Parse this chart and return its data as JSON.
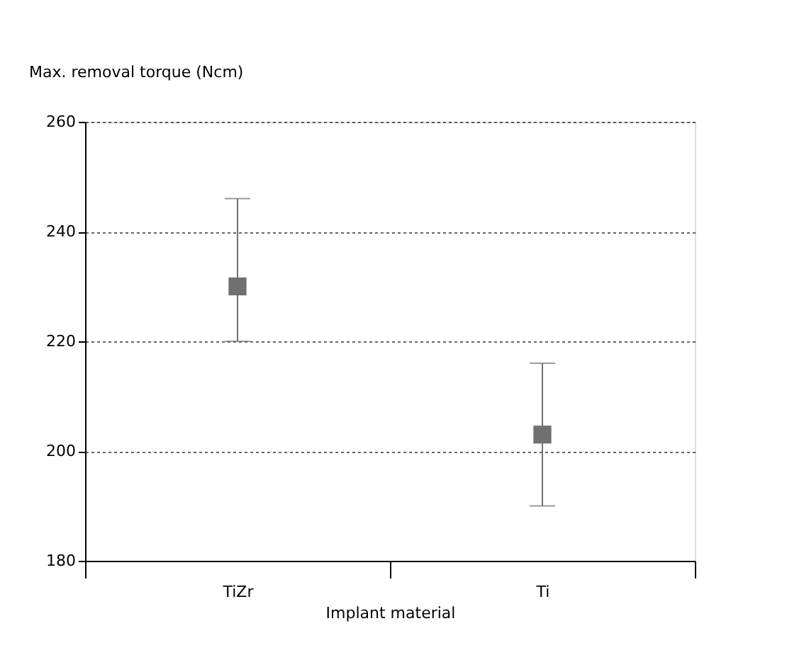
{
  "chart_data": {
    "type": "scatter",
    "xlabel": "Implant material",
    "ylabel": "Max. removal torque (Ncm)",
    "categories": [
      "TiZr",
      "Ti"
    ],
    "series": [
      {
        "color": "#707070",
        "values": [
          230,
          203
        ],
        "errors": [
          [
            220,
            246
          ],
          [
            190,
            216
          ]
        ]
      }
    ],
    "ylim": [
      180,
      260
    ],
    "yticks": [
      180,
      200,
      220,
      240,
      260
    ],
    "grid": "y",
    "marker": "square"
  }
}
